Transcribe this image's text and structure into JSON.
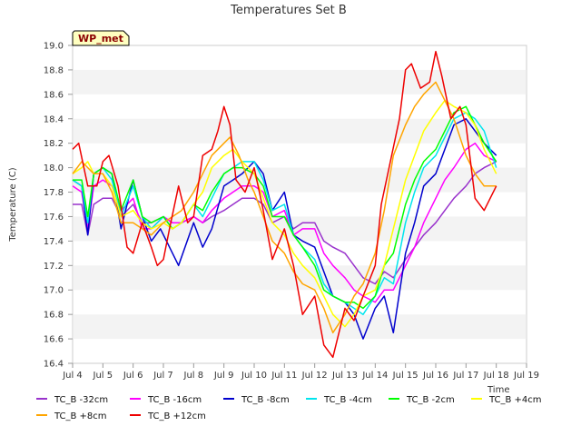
{
  "chart_data": {
    "type": "line",
    "title": "Temperatures Set B",
    "xlabel": "Time",
    "ylabel": "Temperature (C)",
    "badge": "WP_met",
    "ylim": [
      16.4,
      19.0
    ],
    "yticks": [
      16.4,
      16.6,
      16.8,
      17.0,
      17.2,
      17.4,
      17.6,
      17.8,
      18.0,
      18.2,
      18.4,
      18.6,
      18.8,
      19.0
    ],
    "xlim": [
      0,
      15
    ],
    "xticks": [
      {
        "x": 0,
        "label": "Jul 4"
      },
      {
        "x": 1,
        "label": "Jul 5"
      },
      {
        "x": 2,
        "label": "Jul 6"
      },
      {
        "x": 3,
        "label": "Jul 7"
      },
      {
        "x": 4,
        "label": "Jul 8"
      },
      {
        "x": 5,
        "label": "Jul 9"
      },
      {
        "x": 6,
        "label": "Jul 10"
      },
      {
        "x": 7,
        "label": "Jul 11"
      },
      {
        "x": 8,
        "label": "Jul 12"
      },
      {
        "x": 9,
        "label": "Jul 13"
      },
      {
        "x": 10,
        "label": "Jul 14"
      },
      {
        "x": 11,
        "label": "Jul 15"
      },
      {
        "x": 12,
        "label": "Jul 16"
      },
      {
        "x": 13,
        "label": "Jul 17"
      },
      {
        "x": 14,
        "label": "Jul 18"
      },
      {
        "x": 15,
        "label": "Jul 19"
      }
    ],
    "grid": "horizontal bands",
    "legend_position": "bottom",
    "series": [
      {
        "name": "TC_B -32cm",
        "color": "#9932cc",
        "x": [
          0,
          0.3,
          0.5,
          0.7,
          1.0,
          1.3,
          1.6,
          2.0,
          2.3,
          2.6,
          3.0,
          3.3,
          3.6,
          4.0,
          4.3,
          4.6,
          5.0,
          5.3,
          5.6,
          6.0,
          6.3,
          6.6,
          7.0,
          7.3,
          7.6,
          8.0,
          8.3,
          8.6,
          9.0,
          9.3,
          9.6,
          10.0,
          10.3,
          10.6,
          11.0,
          11.3,
          11.6,
          12.0,
          12.3,
          12.6,
          13.0,
          13.3,
          13.6,
          14.0
        ],
        "y": [
          17.7,
          17.7,
          17.45,
          17.7,
          17.75,
          17.75,
          17.6,
          17.7,
          17.55,
          17.55,
          17.6,
          17.55,
          17.55,
          17.6,
          17.55,
          17.6,
          17.65,
          17.7,
          17.75,
          17.75,
          17.7,
          17.55,
          17.6,
          17.5,
          17.55,
          17.55,
          17.4,
          17.35,
          17.3,
          17.2,
          17.1,
          17.05,
          17.15,
          17.1,
          17.25,
          17.35,
          17.45,
          17.55,
          17.65,
          17.75,
          17.85,
          17.95,
          18.0,
          18.05
        ]
      },
      {
        "name": "TC_B -16cm",
        "color": "#ff00ff",
        "x": [
          0,
          0.3,
          0.5,
          0.7,
          1.0,
          1.3,
          1.6,
          2.0,
          2.3,
          2.6,
          3.0,
          3.3,
          3.6,
          4.0,
          4.3,
          4.6,
          5.0,
          5.3,
          5.6,
          6.0,
          6.3,
          6.6,
          7.0,
          7.3,
          7.6,
          8.0,
          8.3,
          8.6,
          9.0,
          9.3,
          9.6,
          10.0,
          10.3,
          10.6,
          11.0,
          11.3,
          11.6,
          12.0,
          12.3,
          12.6,
          13.0,
          13.3,
          13.6,
          14.0
        ],
        "y": [
          17.85,
          17.8,
          17.5,
          17.85,
          17.9,
          17.85,
          17.65,
          17.75,
          17.5,
          17.5,
          17.6,
          17.55,
          17.55,
          17.6,
          17.55,
          17.65,
          17.75,
          17.8,
          17.85,
          17.85,
          17.8,
          17.6,
          17.65,
          17.45,
          17.5,
          17.5,
          17.3,
          17.2,
          17.1,
          17.0,
          16.95,
          16.9,
          17.0,
          17.0,
          17.2,
          17.35,
          17.55,
          17.75,
          17.9,
          18.0,
          18.15,
          18.2,
          18.1,
          18.05
        ]
      },
      {
        "name": "TC_B -8cm",
        "color": "#0000cd",
        "x": [
          0,
          0.3,
          0.5,
          0.7,
          1.0,
          1.3,
          1.6,
          2.0,
          2.3,
          2.6,
          2.9,
          3.2,
          3.5,
          4.0,
          4.3,
          4.6,
          5.0,
          5.3,
          5.6,
          6.0,
          6.3,
          6.6,
          7.0,
          7.3,
          7.6,
          8.0,
          8.3,
          8.6,
          9.0,
          9.3,
          9.6,
          10.0,
          10.3,
          10.6,
          11.0,
          11.3,
          11.6,
          12.0,
          12.3,
          12.6,
          13.0,
          13.3,
          13.6,
          14.0
        ],
        "y": [
          17.9,
          17.85,
          17.45,
          17.95,
          18.0,
          17.95,
          17.5,
          17.9,
          17.6,
          17.4,
          17.5,
          17.35,
          17.2,
          17.55,
          17.35,
          17.5,
          17.85,
          17.9,
          17.95,
          18.05,
          17.95,
          17.65,
          17.8,
          17.45,
          17.4,
          17.35,
          17.15,
          16.95,
          16.9,
          16.8,
          16.6,
          16.85,
          16.95,
          16.65,
          17.3,
          17.55,
          17.85,
          17.95,
          18.15,
          18.35,
          18.4,
          18.3,
          18.2,
          18.1
        ]
      },
      {
        "name": "TC_B -4cm",
        "color": "#00e5ee",
        "x": [
          0,
          0.3,
          0.5,
          0.7,
          1.0,
          1.3,
          1.6,
          2.0,
          2.3,
          2.6,
          3.0,
          3.3,
          3.6,
          4.0,
          4.3,
          4.6,
          5.0,
          5.3,
          5.6,
          6.0,
          6.3,
          6.6,
          7.0,
          7.3,
          7.6,
          8.0,
          8.3,
          8.6,
          9.0,
          9.3,
          9.6,
          10.0,
          10.3,
          10.6,
          11.0,
          11.3,
          11.6,
          12.0,
          12.3,
          12.6,
          13.0,
          13.3,
          13.6,
          14.0
        ],
        "y": [
          17.9,
          17.85,
          17.55,
          17.95,
          18.0,
          17.9,
          17.6,
          17.85,
          17.6,
          17.5,
          17.6,
          17.5,
          17.55,
          17.7,
          17.6,
          17.75,
          17.95,
          18.0,
          18.05,
          18.05,
          17.9,
          17.65,
          17.7,
          17.45,
          17.35,
          17.25,
          17.05,
          16.95,
          16.9,
          16.85,
          16.8,
          16.95,
          17.1,
          17.05,
          17.55,
          17.8,
          18.0,
          18.1,
          18.25,
          18.4,
          18.45,
          18.4,
          18.3,
          18.0
        ]
      },
      {
        "name": "TC_B -2cm",
        "color": "#00ff00",
        "x": [
          0,
          0.3,
          0.5,
          0.7,
          1.0,
          1.3,
          1.6,
          2.0,
          2.3,
          2.6,
          3.0,
          3.3,
          3.6,
          4.0,
          4.3,
          4.6,
          5.0,
          5.3,
          5.6,
          6.0,
          6.3,
          6.6,
          7.0,
          7.3,
          7.6,
          8.0,
          8.3,
          8.6,
          9.0,
          9.3,
          9.6,
          10.0,
          10.3,
          10.6,
          11.0,
          11.3,
          11.6,
          12.0,
          12.3,
          12.6,
          13.0,
          13.3,
          13.6,
          14.0
        ],
        "y": [
          17.9,
          17.9,
          17.6,
          17.95,
          18.0,
          17.95,
          17.65,
          17.9,
          17.6,
          17.55,
          17.6,
          17.5,
          17.55,
          17.7,
          17.65,
          17.8,
          17.95,
          18.0,
          18.0,
          17.95,
          17.85,
          17.6,
          17.6,
          17.45,
          17.35,
          17.2,
          17.0,
          16.95,
          16.9,
          16.9,
          16.85,
          16.95,
          17.2,
          17.3,
          17.7,
          17.9,
          18.05,
          18.15,
          18.3,
          18.45,
          18.5,
          18.35,
          18.2,
          18.05
        ]
      },
      {
        "name": "TC_B +4cm",
        "color": "#ffff00",
        "x": [
          0,
          0.3,
          0.5,
          0.7,
          1.0,
          1.3,
          1.6,
          2.0,
          2.3,
          2.6,
          3.0,
          3.3,
          3.6,
          4.0,
          4.3,
          4.6,
          5.0,
          5.3,
          5.6,
          6.0,
          6.3,
          6.6,
          7.0,
          7.3,
          7.6,
          8.0,
          8.3,
          8.6,
          9.0,
          9.3,
          9.6,
          10.0,
          10.3,
          10.6,
          11.0,
          11.3,
          11.6,
          12.0,
          12.3,
          12.6,
          13.0,
          13.3,
          13.6,
          14.0
        ],
        "y": [
          17.95,
          18.0,
          18.05,
          17.95,
          17.95,
          17.85,
          17.6,
          17.65,
          17.55,
          17.5,
          17.55,
          17.5,
          17.55,
          17.7,
          17.8,
          18.0,
          18.1,
          18.15,
          18.05,
          17.95,
          17.75,
          17.55,
          17.45,
          17.3,
          17.2,
          17.1,
          16.95,
          16.8,
          16.7,
          16.8,
          16.95,
          17.0,
          17.2,
          17.5,
          17.9,
          18.1,
          18.3,
          18.45,
          18.55,
          18.5,
          18.45,
          18.35,
          18.15,
          17.95
        ]
      },
      {
        "name": "TC_B +8cm",
        "color": "#ffa500",
        "x": [
          0,
          0.3,
          0.5,
          0.7,
          1.0,
          1.3,
          1.6,
          2.0,
          2.3,
          2.6,
          3.0,
          3.3,
          3.6,
          4.0,
          4.3,
          4.6,
          5.0,
          5.2,
          5.5,
          5.8,
          6.0,
          6.3,
          6.6,
          7.0,
          7.3,
          7.6,
          8.0,
          8.3,
          8.6,
          9.0,
          9.3,
          9.6,
          10.0,
          10.3,
          10.6,
          11.0,
          11.3,
          11.6,
          12.0,
          12.3,
          12.6,
          13.0,
          13.3,
          13.6,
          14.0
        ],
        "y": [
          17.95,
          18.05,
          18.0,
          17.95,
          17.95,
          17.8,
          17.55,
          17.55,
          17.5,
          17.45,
          17.55,
          17.6,
          17.65,
          17.8,
          17.95,
          18.1,
          18.2,
          18.25,
          18.1,
          17.9,
          17.8,
          17.6,
          17.4,
          17.3,
          17.15,
          17.05,
          17.0,
          16.85,
          16.65,
          16.8,
          16.95,
          17.05,
          17.3,
          17.65,
          18.1,
          18.35,
          18.5,
          18.6,
          18.7,
          18.55,
          18.4,
          18.1,
          17.95,
          17.85,
          17.85
        ]
      },
      {
        "name": "TC_B +12cm",
        "color": "#ee0000",
        "x": [
          0,
          0.2,
          0.5,
          0.8,
          1.0,
          1.2,
          1.5,
          1.8,
          2.0,
          2.3,
          2.6,
          2.8,
          3.0,
          3.2,
          3.5,
          3.8,
          4.0,
          4.3,
          4.6,
          4.8,
          5.0,
          5.2,
          5.4,
          5.7,
          6.0,
          6.3,
          6.6,
          7.0,
          7.3,
          7.6,
          8.0,
          8.3,
          8.6,
          9.0,
          9.3,
          9.6,
          10.0,
          10.2,
          10.5,
          10.8,
          11.0,
          11.2,
          11.5,
          11.8,
          12.0,
          12.2,
          12.5,
          12.8,
          13.0,
          13.3,
          13.6,
          14.0
        ],
        "y": [
          18.15,
          18.2,
          17.85,
          17.85,
          18.05,
          18.1,
          17.85,
          17.35,
          17.3,
          17.55,
          17.35,
          17.2,
          17.25,
          17.5,
          17.85,
          17.55,
          17.6,
          18.1,
          18.15,
          18.3,
          18.5,
          18.35,
          17.9,
          17.8,
          18.0,
          17.65,
          17.25,
          17.5,
          17.2,
          16.8,
          16.95,
          16.55,
          16.45,
          16.85,
          16.75,
          16.95,
          17.2,
          17.7,
          18.05,
          18.4,
          18.8,
          18.85,
          18.65,
          18.7,
          18.95,
          18.75,
          18.4,
          18.5,
          18.35,
          17.75,
          17.65,
          17.85
        ]
      }
    ]
  }
}
